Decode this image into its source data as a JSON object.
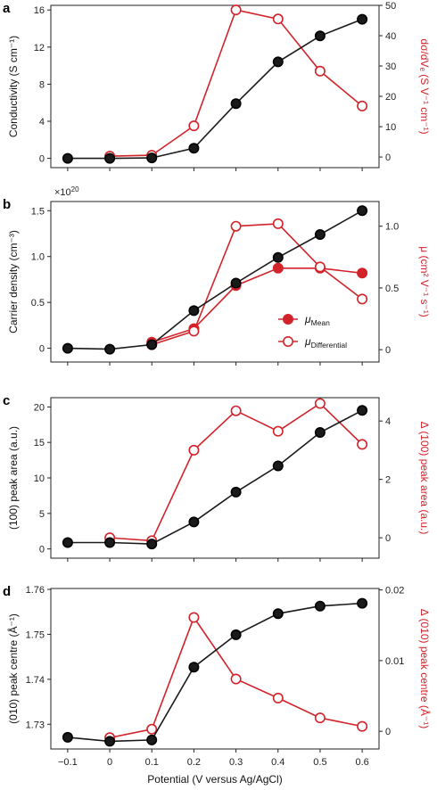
{
  "colors": {
    "black_series": "#1a1a1a",
    "red_series": "#d2232a",
    "axis": "#222222"
  },
  "x_axis": {
    "label": "Potential (V versus Ag/AgCl)",
    "ticks": [
      -0.1,
      0,
      0.1,
      0.2,
      0.3,
      0.4,
      0.5,
      0.6
    ],
    "tick_labels": [
      "−0.1",
      "0",
      "0.1",
      "0.2",
      "0.3",
      "0.4",
      "0.5",
      "0.6"
    ],
    "range": [
      -0.14,
      0.64
    ]
  },
  "chart_data": [
    {
      "panel": "a",
      "type": "line",
      "x": [
        -0.1,
        0,
        0.1,
        0.2,
        0.3,
        0.4,
        0.5,
        0.6
      ],
      "left_axis": {
        "label": "Conductivity (S cm⁻¹)",
        "ylim": [
          -1,
          16.5
        ],
        "ticks": [
          0,
          4,
          8,
          12,
          16
        ],
        "tick_labels": [
          "0",
          "4",
          "8",
          "12",
          "16"
        ]
      },
      "right_axis": {
        "label": "dσ/dVₑ (S V⁻¹ cm⁻¹)",
        "ylim": [
          -3.5,
          50
        ],
        "ticks": [
          0,
          10,
          20,
          30,
          40,
          50
        ],
        "tick_labels": [
          "0",
          "10",
          "20",
          "30",
          "40",
          "50"
        ]
      },
      "series": [
        {
          "axis": "left",
          "style": "filled-black",
          "x": [
            -0.1,
            0,
            0.1,
            0.2,
            0.3,
            0.4,
            0.5,
            0.6
          ],
          "values": [
            0.0,
            0.0,
            0.05,
            1.1,
            5.9,
            10.4,
            13.2,
            15.0
          ]
        },
        {
          "axis": "right",
          "style": "open-red",
          "x": [
            0,
            0.1,
            0.2,
            0.3,
            0.4,
            0.5,
            0.6
          ],
          "values": [
            0.3,
            0.6,
            10.3,
            48.5,
            45.5,
            28.3,
            16.8
          ]
        }
      ]
    },
    {
      "panel": "b",
      "type": "line",
      "x": [
        -0.1,
        0,
        0.1,
        0.2,
        0.3,
        0.4,
        0.5,
        0.6
      ],
      "multiplier": "×10",
      "multiplier_exp": "20",
      "left_axis": {
        "label": "Carrier density (cm⁻³)",
        "ylim": [
          -0.15,
          1.6
        ],
        "ticks": [
          0,
          0.5,
          1.0,
          1.5
        ],
        "tick_labels": [
          "0",
          "0.5",
          "1.0",
          "1.5"
        ]
      },
      "right_axis": {
        "label": "μ (cm² V⁻¹ s⁻¹)",
        "ylim": [
          -0.1,
          1.2
        ],
        "ticks": [
          0,
          0.5,
          1.0
        ],
        "tick_labels": [
          "0",
          "0.5",
          "1.0"
        ]
      },
      "series": [
        {
          "axis": "left",
          "style": "filled-black",
          "x": [
            -0.1,
            0,
            0.1,
            0.2,
            0.3,
            0.4,
            0.5,
            0.6
          ],
          "values": [
            0.0,
            -0.01,
            0.04,
            0.41,
            0.71,
            0.99,
            1.24,
            1.5
          ]
        },
        {
          "axis": "right",
          "style": "filled-red",
          "name": "μ",
          "name_sub": "Mean",
          "x": [
            0.1,
            0.2,
            0.3,
            0.4,
            0.5,
            0.6
          ],
          "values": [
            0.06,
            0.17,
            0.52,
            0.66,
            0.66,
            0.62
          ]
        },
        {
          "axis": "right",
          "style": "open-red",
          "name": "μ",
          "name_sub": "Differential",
          "x": [
            0.1,
            0.2,
            0.3,
            0.4,
            0.5,
            0.6
          ],
          "values": [
            0.04,
            0.15,
            1.0,
            1.02,
            0.67,
            0.41
          ]
        }
      ],
      "legend": "lower-right"
    },
    {
      "panel": "c",
      "type": "line",
      "x": [
        -0.1,
        0,
        0.1,
        0.2,
        0.3,
        0.4,
        0.5,
        0.6
      ],
      "left_axis": {
        "label": "(100) peak area (a.u.)",
        "ylim": [
          -1.3,
          21.3
        ],
        "ticks": [
          0,
          5,
          10,
          15,
          20
        ],
        "tick_labels": [
          "0",
          "5",
          "10",
          "15",
          "20"
        ]
      },
      "right_axis": {
        "label": "Δ (100) peak area (a.u.)",
        "ylim": [
          -0.7,
          4.8
        ],
        "ticks": [
          0,
          2,
          4
        ],
        "tick_labels": [
          "0",
          "2",
          "4"
        ]
      },
      "series": [
        {
          "axis": "left",
          "style": "filled-black",
          "x": [
            -0.1,
            0,
            0.1,
            0.2,
            0.3,
            0.4,
            0.5,
            0.6
          ],
          "values": [
            0.9,
            0.9,
            0.7,
            3.8,
            8.0,
            11.7,
            16.4,
            19.5
          ]
        },
        {
          "axis": "right",
          "style": "open-red",
          "x": [
            0,
            0.1,
            0.2,
            0.3,
            0.4,
            0.5,
            0.6
          ],
          "values": [
            0.0,
            -0.1,
            3.0,
            4.35,
            3.65,
            4.6,
            3.2
          ]
        }
      ]
    },
    {
      "panel": "d",
      "type": "line",
      "x": [
        -0.1,
        0,
        0.1,
        0.2,
        0.3,
        0.4,
        0.5,
        0.6
      ],
      "left_axis": {
        "label": "(010) peak centre (Å⁻¹)",
        "ylim": [
          1.7245,
          1.7602
        ],
        "ticks": [
          1.73,
          1.74,
          1.75,
          1.76
        ],
        "tick_labels": [
          "1.73",
          "1.74",
          "1.75",
          "1.76"
        ]
      },
      "right_axis": {
        "label": "Δ (010) peak centre (Å⁻¹)",
        "ylim": [
          -0.0025,
          0.0202
        ],
        "ticks": [
          0,
          0.01,
          0.02
        ],
        "tick_labels": [
          "0",
          "0.01",
          "0.02"
        ]
      },
      "series": [
        {
          "axis": "left",
          "style": "filled-black",
          "x": [
            -0.1,
            0,
            0.1,
            0.2,
            0.3,
            0.4,
            0.5,
            0.6
          ],
          "values": [
            1.7271,
            1.7262,
            1.7265,
            1.7427,
            1.7499,
            1.7546,
            1.7563,
            1.7569
          ]
        },
        {
          "axis": "right",
          "style": "open-red",
          "x": [
            0,
            0.1,
            0.2,
            0.3,
            0.4,
            0.5,
            0.6
          ],
          "values": [
            -0.0009,
            0.0003,
            0.0161,
            0.0074,
            0.0047,
            0.0019,
            0.0007
          ]
        }
      ]
    }
  ]
}
